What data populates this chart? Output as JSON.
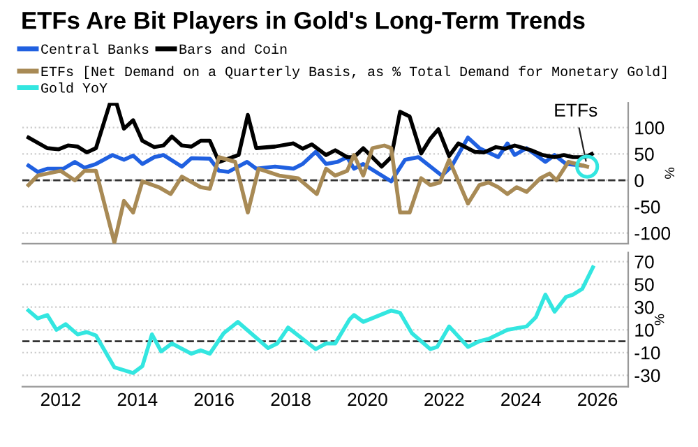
{
  "chart_data": [
    {
      "type": "line",
      "title": "ETFs Are Bit Players in Gold's Long-Term Trends",
      "ylabel": "%",
      "legend": "top",
      "grid": "y",
      "tick_labels": "y",
      "xlim": [
        2011.0,
        2026.8
      ],
      "xticks": [
        2012,
        2014,
        2016,
        2018,
        2020,
        2022,
        2024,
        2026
      ],
      "ylim": [
        -120,
        147
      ],
      "yticks": [
        -100,
        -50,
        0,
        50,
        100
      ],
      "ref_lines": [
        {
          "axis": "y",
          "value": 0,
          "line_style": "dashed",
          "color": "#333333"
        }
      ],
      "annotations": [
        {
          "text": "ETFs",
          "x": 2025.73,
          "y": 26
        }
      ],
      "series": [
        {
          "name": "Central Banks",
          "color": "#2060e0",
          "x": [
            2011.16,
            2011.4,
            2011.65,
            2012.07,
            2012.37,
            2012.62,
            2012.92,
            2013.35,
            2013.65,
            2013.89,
            2014.13,
            2014.44,
            2014.68,
            2015.16,
            2015.41,
            2015.89,
            2016.13,
            2016.37,
            2016.86,
            2017.1,
            2017.59,
            2018.07,
            2018.31,
            2018.65,
            2018.92,
            2019.22,
            2019.47,
            2019.65,
            2019.89,
            2020.62,
            2020.98,
            2021.33,
            2021.94,
            2022.19,
            2022.62,
            2022.92,
            2023.41,
            2023.65,
            2023.84,
            2024.15,
            2024.64,
            2024.88,
            2025.18,
            2025.6
          ],
          "values": [
            28,
            16,
            22,
            22,
            35,
            24,
            31,
            48,
            39,
            47,
            31,
            44,
            48,
            26,
            42,
            41,
            18,
            16,
            35,
            22,
            26,
            22,
            31,
            54,
            31,
            35,
            44,
            22,
            31,
            -2,
            39,
            44,
            9,
            26,
            81,
            61,
            44,
            70,
            48,
            61,
            35,
            48,
            31,
            28
          ]
        },
        {
          "name": "Bars and Coin",
          "color": "#000000",
          "x": [
            2011.16,
            2011.65,
            2011.95,
            2012.19,
            2012.44,
            2012.68,
            2012.92,
            2013.28,
            2013.46,
            2013.65,
            2013.89,
            2014.13,
            2014.44,
            2014.68,
            2014.9,
            2015.16,
            2015.41,
            2015.65,
            2015.89,
            2016.13,
            2016.64,
            2016.88,
            2017.1,
            2017.59,
            2018.07,
            2018.31,
            2018.55,
            2018.92,
            2019.16,
            2019.47,
            2019.65,
            2019.89,
            2020.37,
            2020.62,
            2020.85,
            2021.1,
            2021.4,
            2021.64,
            2021.85,
            2022.13,
            2022.37,
            2022.8,
            2023.04,
            2023.35,
            2023.6,
            2023.84,
            2024.27,
            2024.57,
            2024.88,
            2025.12,
            2025.36,
            2025.67,
            2025.85
          ],
          "values": [
            81,
            61,
            59,
            66,
            64,
            53,
            61,
            145,
            145,
            98,
            114,
            75,
            63,
            66,
            83,
            66,
            64,
            75,
            75,
            35,
            48,
            124,
            61,
            64,
            70,
            60,
            68,
            48,
            57,
            44,
            44,
            61,
            26,
            44,
            130,
            121,
            51,
            79,
            97,
            46,
            70,
            54,
            53,
            63,
            60,
            66,
            57,
            48,
            44,
            48,
            44,
            44,
            50
          ]
        },
        {
          "name": "ETFs [Net Demand on a Quarterly Basis, as % Total Demand for Monetary Gold]",
          "color": "#a88a55",
          "x": [
            2011.16,
            2011.4,
            2012.0,
            2012.37,
            2012.62,
            2012.92,
            2013.4,
            2013.65,
            2013.89,
            2014.13,
            2014.56,
            2014.87,
            2015.16,
            2015.65,
            2015.89,
            2016.13,
            2016.55,
            2016.88,
            2017.16,
            2017.7,
            2018.19,
            2018.68,
            2018.92,
            2019.16,
            2019.47,
            2019.65,
            2019.89,
            2020.13,
            2020.44,
            2020.62,
            2020.85,
            2021.1,
            2021.4,
            2021.64,
            2021.89,
            2022.13,
            2022.62,
            2022.92,
            2023.16,
            2023.41,
            2023.65,
            2023.89,
            2024.15,
            2024.51,
            2024.75,
            2024.93,
            2025.24,
            2025.73
          ],
          "values": [
            -9,
            9,
            18,
            0,
            18,
            18,
            -118,
            -39,
            -61,
            -2,
            -13,
            -26,
            7,
            -13,
            -16,
            44,
            35,
            -61,
            22,
            9,
            4,
            -26,
            22,
            9,
            18,
            48,
            9,
            61,
            66,
            61,
            -61,
            -61,
            4,
            -9,
            -4,
            39,
            -44,
            -9,
            -4,
            -13,
            -26,
            -13,
            -22,
            4,
            13,
            0,
            35,
            26
          ]
        }
      ]
    },
    {
      "type": "line",
      "ylabel": "%",
      "legend": "top",
      "grid": "y",
      "xlim": [
        2011.0,
        2026.8
      ],
      "xticks": [
        2012,
        2014,
        2016,
        2018,
        2020,
        2022,
        2024,
        2026
      ],
      "ylim": [
        -40,
        78
      ],
      "yticks": [
        -30,
        -10,
        10,
        30,
        50,
        70
      ],
      "ref_lines": [
        {
          "axis": "y",
          "value": 0,
          "line_style": "dashed",
          "color": "#333333"
        }
      ],
      "series": [
        {
          "name": "Gold YoY",
          "color": "#33e6e0",
          "x": [
            2011.16,
            2011.4,
            2011.65,
            2011.89,
            2012.13,
            2012.44,
            2012.68,
            2012.92,
            2013.4,
            2013.89,
            2014.13,
            2014.38,
            2014.62,
            2014.9,
            2015.41,
            2015.65,
            2015.89,
            2016.25,
            2016.62,
            2017.41,
            2017.65,
            2017.93,
            2018.65,
            2018.92,
            2019.16,
            2019.53,
            2019.65,
            2019.89,
            2020.62,
            2020.85,
            2021.16,
            2021.64,
            2021.82,
            2022.13,
            2022.62,
            2022.92,
            2023.16,
            2023.65,
            2024.15,
            2024.39,
            2024.64,
            2024.88,
            2025.18,
            2025.36,
            2025.6,
            2025.88
          ],
          "values": [
            27,
            20,
            23,
            10,
            15,
            6,
            8,
            5,
            -23,
            -28,
            -22,
            6,
            -9,
            -2,
            -11,
            -8,
            -11,
            7,
            17,
            -6,
            -2,
            12,
            -7,
            -2,
            -2,
            19,
            23,
            17,
            27,
            25,
            7,
            -7,
            -5,
            13,
            -5,
            0,
            2,
            10,
            13,
            21,
            41,
            26,
            39,
            41,
            46,
            65
          ]
        }
      ]
    }
  ]
}
